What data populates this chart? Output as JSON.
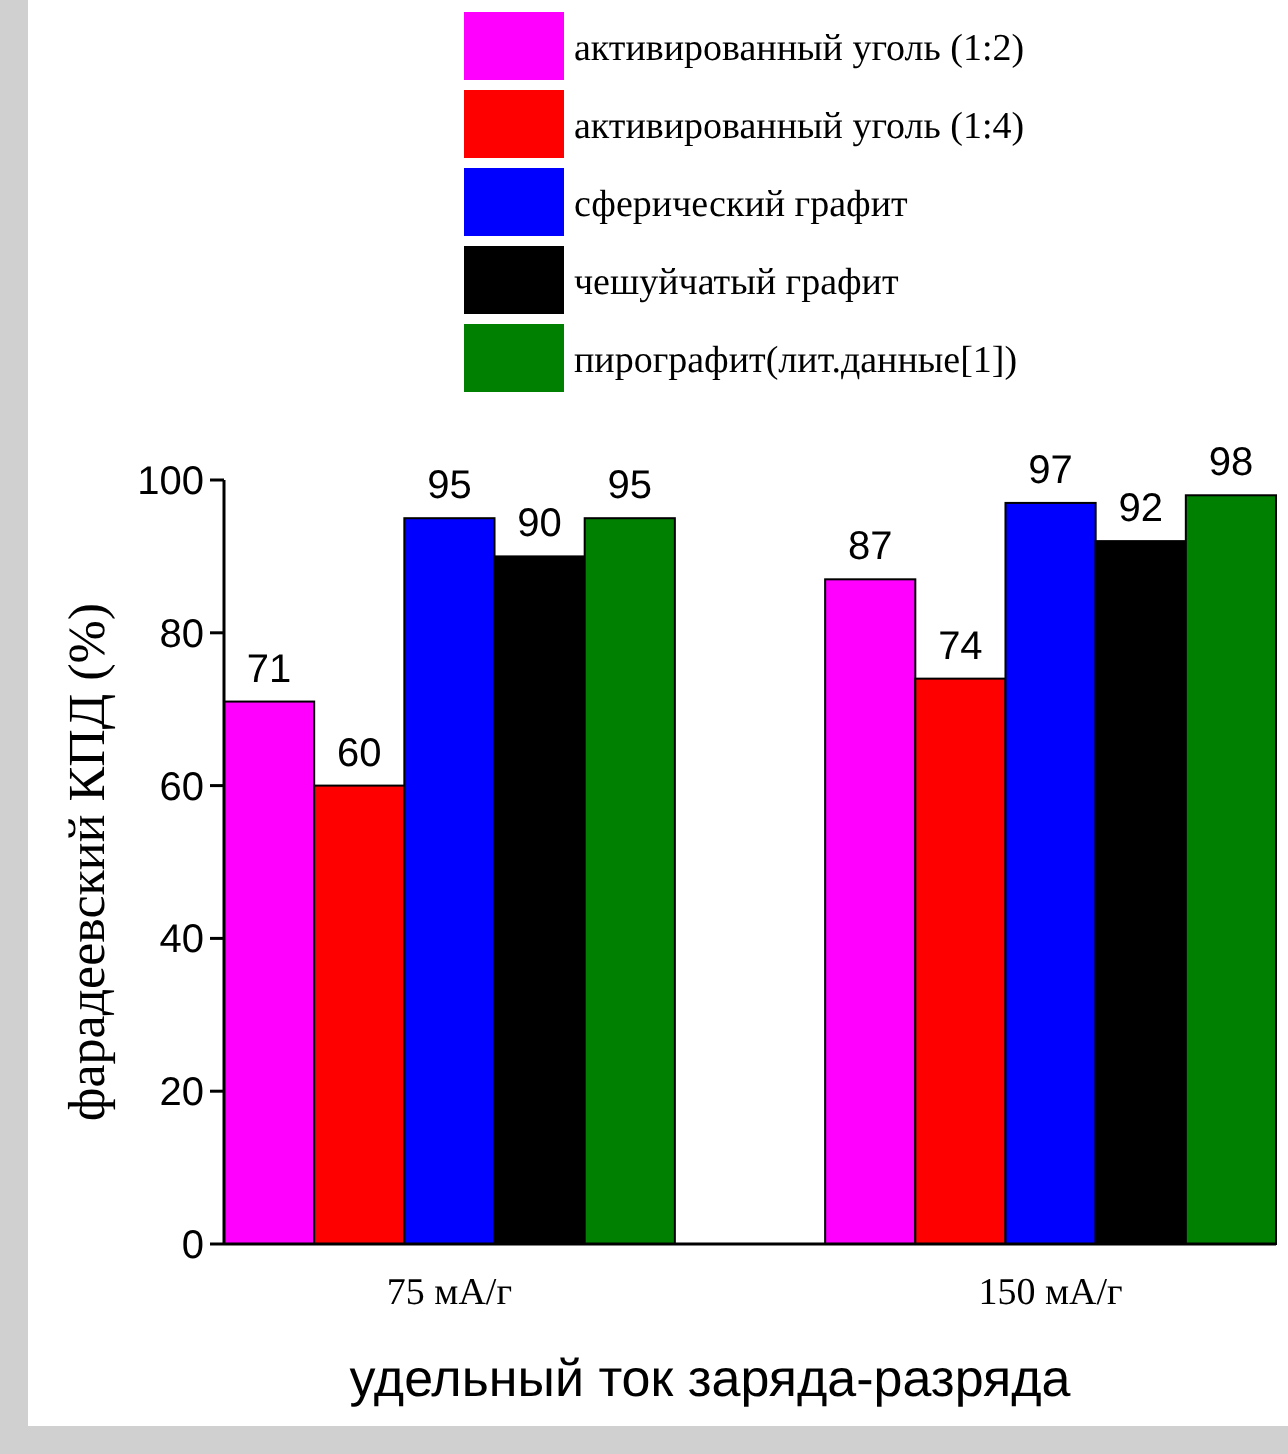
{
  "chart_data": {
    "type": "bar",
    "xlabel": "удельный ток заряда-разряда",
    "ylabel": "фарадеевский КПД (%)",
    "categories": [
      "75 мА/г",
      "150 мА/г"
    ],
    "series": [
      {
        "name": "активированный уголь (1:2)",
        "color": "#ff00ff",
        "values": [
          71,
          87
        ]
      },
      {
        "name": "активированный уголь (1:4)",
        "color": "#ff0000",
        "values": [
          60,
          74
        ]
      },
      {
        "name": "сферический графит",
        "color": "#0000ff",
        "values": [
          95,
          97
        ]
      },
      {
        "name": "чешуйчатый графит",
        "color": "#000000",
        "values": [
          90,
          92
        ]
      },
      {
        "name": "пирографит(лит.данные[1])",
        "color": "#008000",
        "values": [
          95,
          98
        ]
      }
    ],
    "ylim": [
      0,
      100
    ],
    "yticks": [
      0,
      20,
      40,
      60,
      80,
      100
    ],
    "data_labels": true,
    "legend": "top",
    "grid": false
  }
}
